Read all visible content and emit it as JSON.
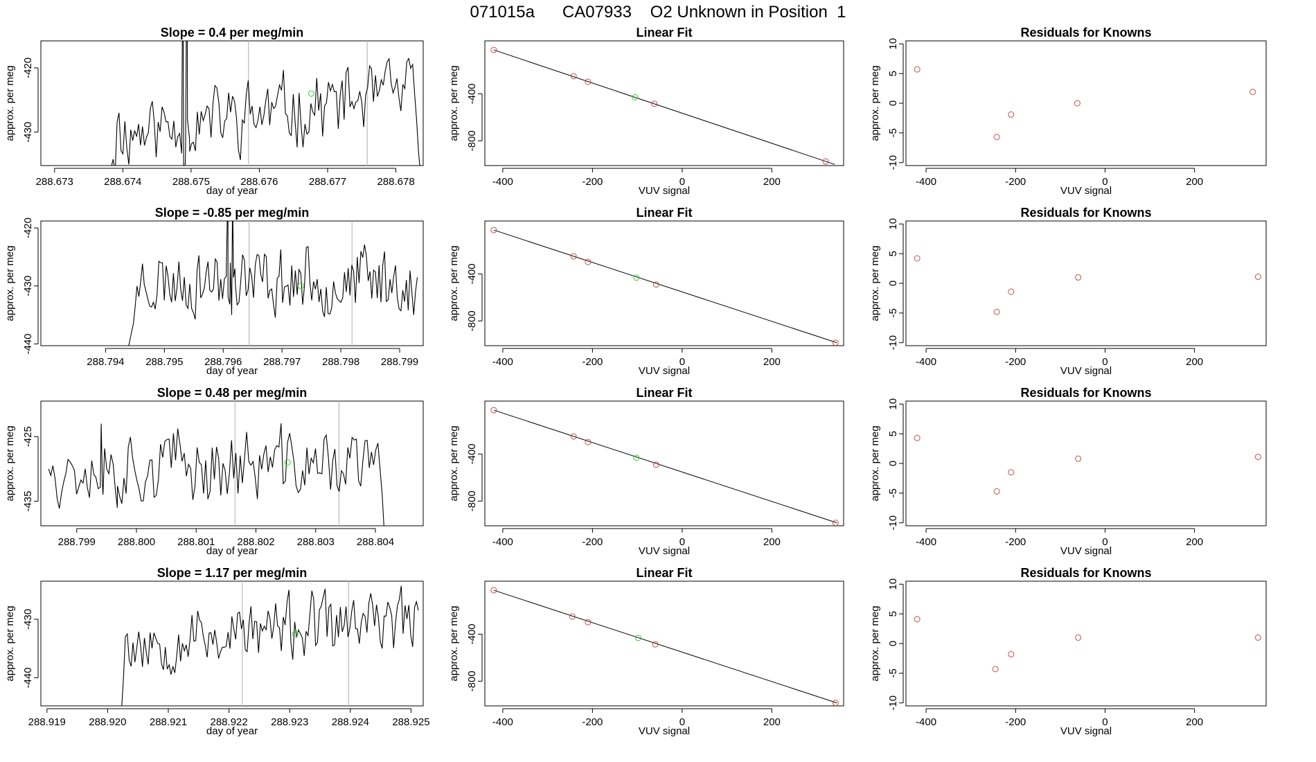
{
  "page_title": "071015a      CA07933    O2 Unknown in Position  1",
  "labels": {
    "trace_ylabel": "approx. per meg",
    "trace_xlabel": "day of year",
    "fit_title": "Linear Fit",
    "fit_ylabel": "approx. per meg",
    "fit_xlabel": "VUV signal",
    "resid_title": "Residuals for Knowns",
    "resid_ylabel": "approx. per meg",
    "resid_xlabel": "VUV signal"
  },
  "colors": {
    "line": "#000000",
    "known": "#c0504d",
    "unknown": "#33cc33",
    "vline": "#bbbbbb"
  },
  "chart_data": [
    {
      "type": "line",
      "panel": "trace",
      "row": 0,
      "title": "Slope =  0.4  per meg/min",
      "xlabel": "day of year",
      "ylabel": "approx. per meg",
      "xlim": [
        288.6728,
        288.6784
      ],
      "ylim": [
        -435.2,
        -415.8
      ],
      "xticks": [
        288.673,
        288.674,
        288.675,
        288.676,
        288.677,
        288.678
      ],
      "xtick_labels": [
        "288.673",
        "288.674",
        "288.675",
        "288.676",
        "288.677",
        "288.678"
      ],
      "yticks": [
        -420,
        -430
      ],
      "vlines": [
        288.67584,
        288.67758
      ],
      "marker": [
        288.67676,
        -424
      ],
      "trace": {
        "start": 288.67383,
        "end": 288.67836,
        "base": -427.0,
        "trend": 6.0,
        "amp": 2.5,
        "seed": 11,
        "head": [
          -435.5,
          -434.2,
          -436.5,
          -428.5,
          -427.0
        ],
        "tail": [
          -424.0,
          -428.0,
          -433.0,
          -436.5
        ],
        "spikes": [
          [
            288.67488,
            -400
          ],
          [
            288.6749,
            -440
          ],
          [
            288.67494,
            -400
          ],
          [
            288.67498,
            -433
          ]
        ]
      }
    },
    {
      "type": "line",
      "panel": "trace",
      "row": 1,
      "title": "Slope =  -0.85  per meg/min",
      "xlabel": "day of year",
      "ylabel": "approx. per meg",
      "xlim": [
        288.7929,
        288.7994
      ],
      "ylim": [
        -440.3,
        -418.8
      ],
      "xticks": [
        288.794,
        288.795,
        288.796,
        288.797,
        288.798,
        288.799
      ],
      "xtick_labels": [
        "288.794",
        "288.795",
        "288.796",
        "288.797",
        "288.798",
        "288.799"
      ],
      "yticks": [
        -420,
        -430,
        -440
      ],
      "vlines": [
        288.79644,
        288.79819
      ],
      "marker": [
        288.79732,
        -430
      ],
      "trace": {
        "start": 288.79438,
        "end": 288.7993,
        "base": -429.0,
        "trend": 0.0,
        "amp": 2.7,
        "seed": 23,
        "head": [
          -441.0,
          -439.5,
          -438.0,
          -436.5,
          -433.5,
          -430.0
        ],
        "tail": [
          -431.0,
          -435.0,
          -431.0,
          -428.5
        ],
        "spikes": [
          [
            288.79608,
            -412
          ],
          [
            288.79612,
            -426
          ],
          [
            288.79616,
            -414
          ],
          [
            288.7962,
            -427
          ]
        ]
      }
    },
    {
      "type": "line",
      "panel": "trace",
      "row": 2,
      "title": "Slope =  0.48  per meg/min",
      "xlabel": "day of year",
      "ylabel": "approx. per meg",
      "xlim": [
        288.7984,
        288.8048
      ],
      "ylim": [
        -438.8,
        -419.5
      ],
      "xticks": [
        288.799,
        288.8,
        288.801,
        288.802,
        288.803,
        288.804
      ],
      "xtick_labels": [
        "288.799",
        "288.800",
        "288.801",
        "288.802",
        "288.803",
        "288.804"
      ],
      "yticks": [
        -425,
        -435
      ],
      "vlines": [
        288.80165,
        288.80339
      ],
      "marker": [
        288.80253,
        -429
      ],
      "trace": {
        "start": 288.79853,
        "end": 288.80415,
        "base": -429.5,
        "trend": 0.0,
        "amp": 2.6,
        "seed": 37,
        "head": [
          -430.0,
          -431.0,
          -429.5
        ],
        "tail": [
          -426.0,
          -430.0,
          -434.0,
          -440.0
        ],
        "spikes": [
          [
            288.79941,
            -423
          ],
          [
            288.79944,
            -434
          ],
          [
            288.79968,
            -436
          ]
        ]
      }
    },
    {
      "type": "line",
      "panel": "trace",
      "row": 3,
      "title": "Slope =  1.17  per meg/min",
      "xlabel": "day of year",
      "ylabel": "approx. per meg",
      "xlim": [
        288.9189,
        288.9252
      ],
      "ylim": [
        -444.8,
        -423.5
      ],
      "xticks": [
        288.919,
        288.92,
        288.921,
        288.922,
        288.923,
        288.924,
        288.925
      ],
      "xtick_labels": [
        "288.919",
        "288.920",
        "288.921",
        "288.922",
        "288.923",
        "288.924",
        "288.925"
      ],
      "yticks": [
        -430,
        -440
      ],
      "vlines": [
        288.92222,
        288.92397
      ],
      "marker": [
        288.92309,
        -432.5
      ],
      "trace": {
        "start": 288.92023,
        "end": 288.92512,
        "base": -432.0,
        "trend": 3.5,
        "amp": 2.5,
        "seed": 53,
        "head": [
          -445.5,
          -440.0,
          -433.0,
          -432.5
        ],
        "tail": [
          -428.0,
          -427.0,
          -428.5
        ],
        "spikes": []
      }
    },
    {
      "type": "scatter",
      "panel": "fit",
      "row": 0,
      "title": "Linear Fit",
      "xlabel": "VUV signal",
      "ylabel": "approx. per meg",
      "xlim": [
        -440,
        360
      ],
      "ylim": [
        -1010,
        50
      ],
      "xticks": [
        -400,
        -200,
        0,
        200
      ],
      "xtick_labels": [
        "-400",
        "-200",
        "0",
        "200"
      ],
      "yticks": [
        -400,
        -800
      ],
      "ytick_labels": [
        "-400",
        "-800"
      ],
      "fit_line": [
        [
          -420,
          -27
        ],
        [
          340,
          -1000
        ]
      ],
      "known_points": [
        [
          -420,
          -27
        ],
        [
          -242,
          -250
        ],
        [
          -210,
          -298
        ],
        [
          -62,
          -485
        ],
        [
          320,
          -975
        ]
      ],
      "unknown_points": [
        [
          -105,
          -430
        ]
      ]
    },
    {
      "type": "scatter",
      "panel": "fit",
      "row": 1,
      "title": "Linear Fit",
      "xlabel": "VUV signal",
      "ylabel": "approx. per meg",
      "xlim": [
        -440,
        360
      ],
      "ylim": [
        -1010,
        50
      ],
      "xticks": [
        -400,
        -200,
        0,
        200
      ],
      "xtick_labels": [
        "-400",
        "-200",
        "0",
        "200"
      ],
      "yticks": [
        -400,
        -800
      ],
      "ytick_labels": [
        "-400",
        "-800"
      ],
      "fit_line": [
        [
          -420,
          -27
        ],
        [
          345,
          -985
        ]
      ],
      "known_points": [
        [
          -420,
          -27
        ],
        [
          -242,
          -250
        ],
        [
          -210,
          -298
        ],
        [
          -58,
          -490
        ],
        [
          342,
          -985
        ]
      ],
      "unknown_points": [
        [
          -102,
          -432
        ]
      ]
    },
    {
      "type": "scatter",
      "panel": "fit",
      "row": 2,
      "title": "Linear Fit",
      "xlabel": "VUV signal",
      "ylabel": "approx. per meg",
      "xlim": [
        -440,
        360
      ],
      "ylim": [
        -1010,
        50
      ],
      "xticks": [
        -400,
        -200,
        0,
        200
      ],
      "xtick_labels": [
        "-400",
        "-200",
        "0",
        "200"
      ],
      "yticks": [
        -400,
        -800
      ],
      "ytick_labels": [
        "-400",
        "-800"
      ],
      "fit_line": [
        [
          -420,
          -27
        ],
        [
          345,
          -985
        ]
      ],
      "known_points": [
        [
          -420,
          -27
        ],
        [
          -242,
          -250
        ],
        [
          -210,
          -298
        ],
        [
          -58,
          -490
        ],
        [
          342,
          -985
        ]
      ],
      "unknown_points": [
        [
          -102,
          -432
        ]
      ]
    },
    {
      "type": "scatter",
      "panel": "fit",
      "row": 3,
      "title": "Linear Fit",
      "xlabel": "VUV signal",
      "ylabel": "approx. per meg",
      "xlim": [
        -440,
        360
      ],
      "ylim": [
        -1010,
        50
      ],
      "xticks": [
        -400,
        -200,
        0,
        200
      ],
      "xtick_labels": [
        "-400",
        "-200",
        "0",
        "200"
      ],
      "yticks": [
        -400,
        -800
      ],
      "ytick_labels": [
        "-400",
        "-800"
      ],
      "fit_line": [
        [
          -420,
          -27
        ],
        [
          345,
          -985
        ]
      ],
      "known_points": [
        [
          -420,
          -27
        ],
        [
          -245,
          -250
        ],
        [
          -210,
          -298
        ],
        [
          -60,
          -487
        ],
        [
          342,
          -985
        ]
      ],
      "unknown_points": [
        [
          -98,
          -432
        ]
      ]
    },
    {
      "type": "scatter",
      "panel": "resid",
      "row": 0,
      "title": "Residuals for Knowns",
      "xlabel": "VUV signal",
      "ylabel": "approx. per meg",
      "xlim": [
        -445,
        360
      ],
      "ylim": [
        -10.5,
        10.5
      ],
      "xticks": [
        -400,
        -200,
        0,
        200
      ],
      "xtick_labels": [
        "-400",
        "-200",
        "0",
        "200"
      ],
      "yticks": [
        10,
        5,
        0,
        -5,
        -10
      ],
      "ytick_labels": [
        "10",
        "5",
        "0",
        "-5",
        "-10"
      ],
      "known_points": [
        [
          -420,
          5.7
        ],
        [
          -242,
          -5.7
        ],
        [
          -210,
          -1.9
        ],
        [
          -62,
          0.0
        ],
        [
          330,
          1.9
        ]
      ]
    },
    {
      "type": "scatter",
      "panel": "resid",
      "row": 1,
      "title": "Residuals for Knowns",
      "xlabel": "VUV signal",
      "ylabel": "approx. per meg",
      "xlim": [
        -445,
        360
      ],
      "ylim": [
        -10.5,
        10.5
      ],
      "xticks": [
        -400,
        -200,
        0,
        200
      ],
      "xtick_labels": [
        "-400",
        "-200",
        "0",
        "200"
      ],
      "yticks": [
        10,
        5,
        0,
        -5,
        -10
      ],
      "ytick_labels": [
        "10",
        "5",
        "0",
        "-5",
        "-10"
      ],
      "known_points": [
        [
          -420,
          4.2
        ],
        [
          -242,
          -4.8
        ],
        [
          -210,
          -1.4
        ],
        [
          -60,
          1.0
        ],
        [
          342,
          1.1
        ]
      ]
    },
    {
      "type": "scatter",
      "panel": "resid",
      "row": 2,
      "title": "Residuals for Knowns",
      "xlabel": "VUV signal",
      "ylabel": "approx. per meg",
      "xlim": [
        -445,
        360
      ],
      "ylim": [
        -10.5,
        10.5
      ],
      "xticks": [
        -400,
        -200,
        0,
        200
      ],
      "xtick_labels": [
        "-400",
        "-200",
        "0",
        "200"
      ],
      "yticks": [
        10,
        5,
        0,
        -5,
        -10
      ],
      "ytick_labels": [
        "10",
        "5",
        "0",
        "-5",
        "-10"
      ],
      "known_points": [
        [
          -420,
          4.3
        ],
        [
          -242,
          -4.7
        ],
        [
          -210,
          -1.5
        ],
        [
          -60,
          0.8
        ],
        [
          342,
          1.1
        ]
      ]
    },
    {
      "type": "scatter",
      "panel": "resid",
      "row": 3,
      "title": "Residuals for Knowns",
      "xlabel": "VUV signal",
      "ylabel": "approx. per meg",
      "xlim": [
        -445,
        360
      ],
      "ylim": [
        -10.5,
        10.5
      ],
      "xticks": [
        -400,
        -200,
        0,
        200
      ],
      "xtick_labels": [
        "-400",
        "-200",
        "0",
        "200"
      ],
      "yticks": [
        10,
        5,
        0,
        -5,
        -10
      ],
      "ytick_labels": [
        "10",
        "5",
        "0",
        "-5",
        "-10"
      ],
      "known_points": [
        [
          -420,
          4.1
        ],
        [
          -245,
          -4.3
        ],
        [
          -210,
          -1.8
        ],
        [
          -60,
          1.0
        ],
        [
          342,
          1.0
        ]
      ]
    }
  ]
}
